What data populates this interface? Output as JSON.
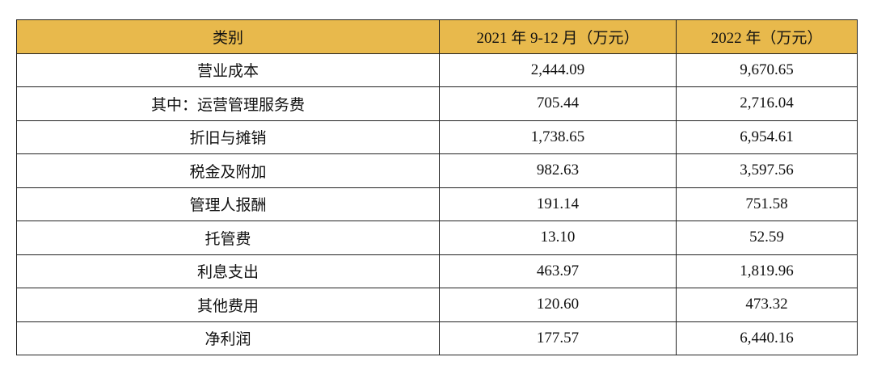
{
  "table": {
    "header": [
      "类别",
      "2021 年 9-12 月（万元）",
      "2022 年（万元）"
    ],
    "rows": [
      [
        "营业成本",
        "2,444.09",
        "9,670.65"
      ],
      [
        "其中：运营管理服务费",
        "705.44",
        "2,716.04"
      ],
      [
        "折旧与摊销",
        "1,738.65",
        "6,954.61"
      ],
      [
        "税金及附加",
        "982.63",
        "3,597.56"
      ],
      [
        "管理人报酬",
        "191.14",
        "751.58"
      ],
      [
        "托管费",
        "13.10",
        "52.59"
      ],
      [
        "利息支出",
        "463.97",
        "1,819.96"
      ],
      [
        "其他费用",
        "120.60",
        "473.32"
      ],
      [
        "净利润",
        "177.57",
        "6,440.16"
      ]
    ]
  }
}
